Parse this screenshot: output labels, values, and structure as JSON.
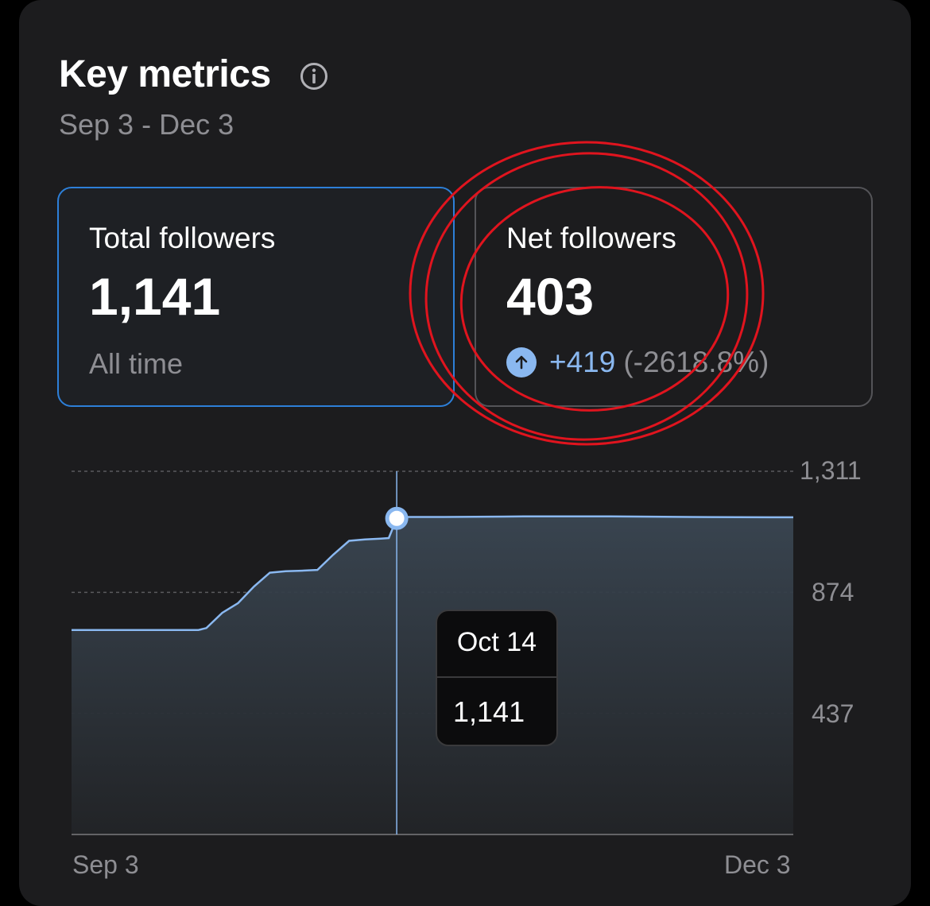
{
  "header": {
    "title": "Key metrics",
    "info_icon": "info-circle-icon",
    "date_range": "Sep 3 - Dec 3"
  },
  "tiles": {
    "total": {
      "label": "Total followers",
      "value": "1,141",
      "sub": "All time"
    },
    "net": {
      "label": "Net followers",
      "value": "403",
      "change_icon": "arrow-up-circle-icon",
      "change_abs": "+419",
      "change_pct": "(-2618.8%)"
    }
  },
  "tooltip": {
    "date": "Oct 14",
    "value": "1,141"
  },
  "colors": {
    "accent": "#8ab8f0",
    "selected_border": "#2d7fd8",
    "annotation": "#e0141e",
    "background": "#1c1c1e"
  },
  "chart_data": {
    "type": "area",
    "x_labels": [
      "Sep 3",
      "Dec 3"
    ],
    "y_ticks": [
      "1,311",
      "874",
      "437"
    ],
    "y_tick_values": [
      1311,
      874,
      437
    ],
    "ylim": [
      0,
      1311
    ],
    "grid": true,
    "selected": {
      "x": "Oct 14",
      "y": 1141
    },
    "series": [
      {
        "x": [
          "Sep 3",
          "Sep 7",
          "Sep 11",
          "Sep 15",
          "Sep 19",
          "Sep 20",
          "Sep 22",
          "Sep 24",
          "Sep 26",
          "Sep 28",
          "Sep 30",
          "Oct 2",
          "Oct 4",
          "Oct 6",
          "Oct 8",
          "Oct 10",
          "Oct 12",
          "Oct 13",
          "Oct 14",
          "Oct 15",
          "Oct 20",
          "Oct 30",
          "Nov 10",
          "Nov 20",
          "Nov 30",
          "Dec 3"
        ],
        "values": [
          738,
          738,
          738,
          738,
          738,
          745,
          800,
          835,
          895,
          945,
          950,
          952,
          955,
          1010,
          1060,
          1065,
          1068,
          1070,
          1141,
          1146,
          1146,
          1148,
          1148,
          1146,
          1145,
          1145
        ]
      }
    ]
  }
}
